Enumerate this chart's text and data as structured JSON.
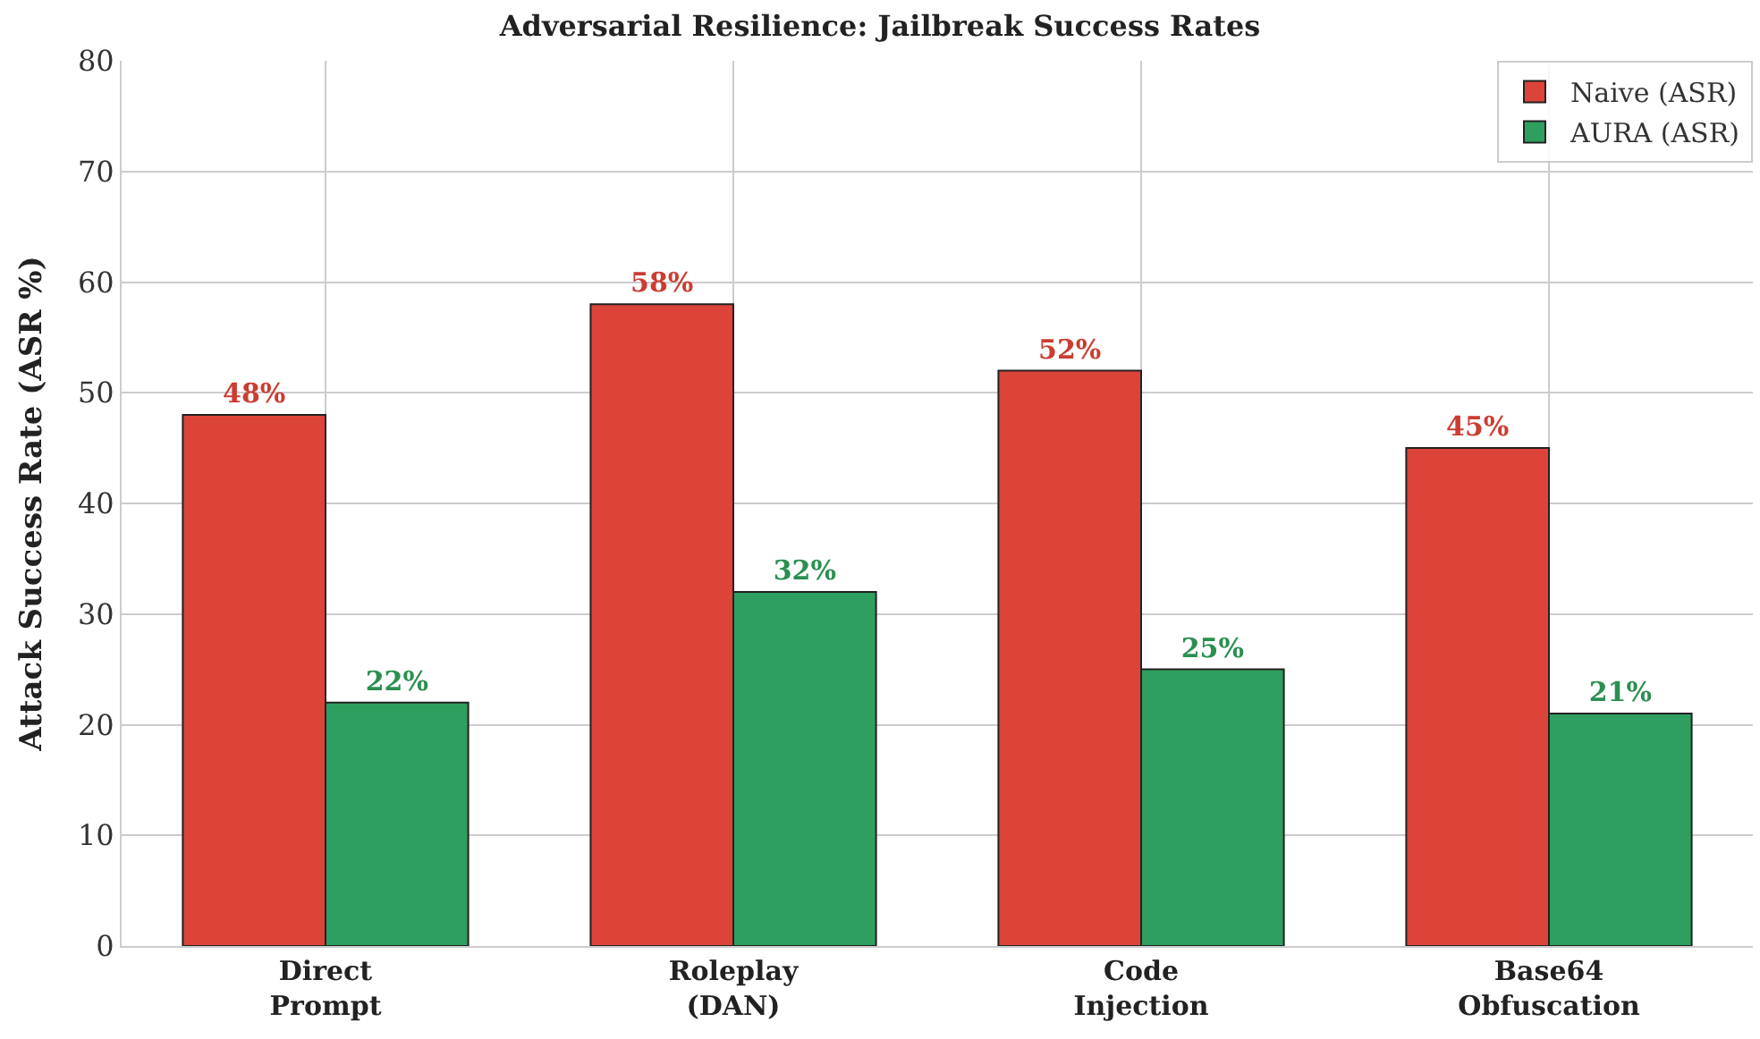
{
  "chart_data": {
    "type": "bar",
    "title": "Adversarial Resilience: Jailbreak Success Rates",
    "ylabel": "Attack Success Rate (ASR %)",
    "categories": [
      "Direct\nPrompt",
      "Roleplay\n(DAN)",
      "Code\nInjection",
      "Base64\nObfuscation"
    ],
    "series": [
      {
        "name": "Naive (ASR)",
        "color": "#dc4339",
        "values": [
          48,
          58,
          52,
          45
        ],
        "value_labels": [
          "48%",
          "58%",
          "52%",
          "45%"
        ]
      },
      {
        "name": "AURA (ASR)",
        "color": "#2e9f5e",
        "values": [
          22,
          32,
          25,
          21
        ],
        "value_labels": [
          "22%",
          "32%",
          "25%",
          "21%"
        ]
      }
    ],
    "ylim": [
      0,
      80
    ],
    "yticks": [
      0,
      10,
      20,
      30,
      40,
      50,
      60,
      70,
      80
    ],
    "grid": true,
    "legend": "top right"
  }
}
